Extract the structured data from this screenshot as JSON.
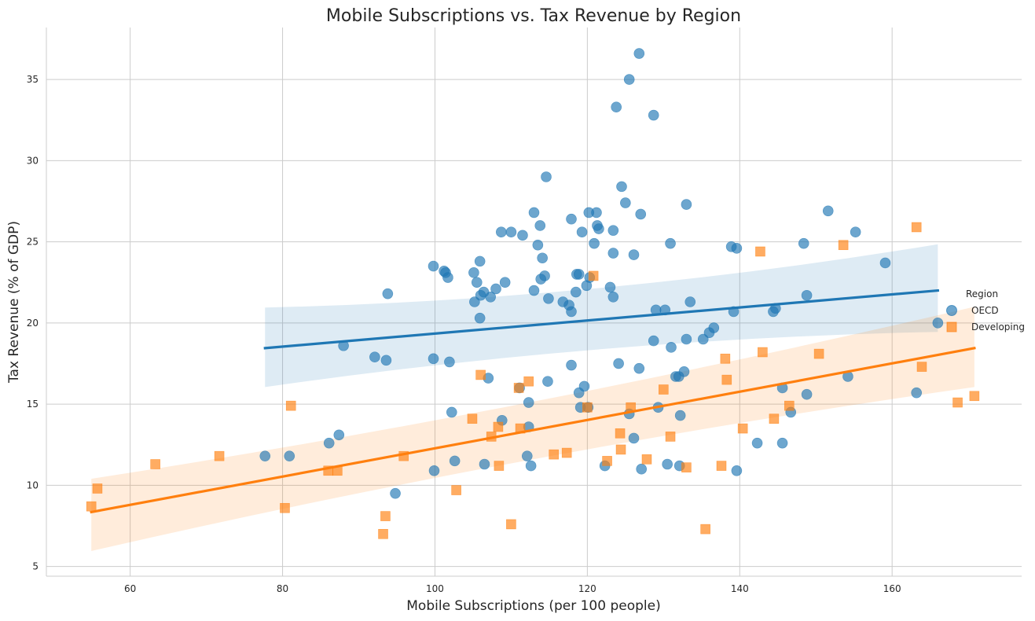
{
  "chart_data": {
    "type": "scatter",
    "title": "Mobile Subscriptions vs. Tax Revenue by Region",
    "xlabel": "Mobile Subscriptions (per 100 people)",
    "ylabel": "Tax Revenue (% of GDP)",
    "xlim": [
      49,
      177
    ],
    "ylim": [
      4.4,
      38.2
    ],
    "xticks": [
      60,
      80,
      100,
      120,
      140,
      160
    ],
    "yticks": [
      5,
      10,
      15,
      20,
      25,
      30,
      35
    ],
    "grid": true,
    "legend": {
      "title": "Region",
      "placement": "right"
    },
    "series": [
      {
        "name": "OECD",
        "color": "#1f77b4",
        "marker": "circle",
        "regression": {
          "x": [
            77.7,
            166
          ],
          "y": [
            18.45,
            22.0
          ],
          "ci_upper": [
            20.95,
            24.85
          ],
          "ci_lower": [
            16.05,
            19.45
          ]
        },
        "points": [
          [
            126.8,
            36.6
          ],
          [
            125.5,
            35.0
          ],
          [
            123.8,
            33.3
          ],
          [
            128.7,
            32.8
          ],
          [
            114.6,
            29.0
          ],
          [
            124.5,
            28.4
          ],
          [
            125.0,
            27.4
          ],
          [
            133.0,
            27.3
          ],
          [
            113.0,
            26.8
          ],
          [
            120.2,
            26.8
          ],
          [
            121.2,
            26.8
          ],
          [
            127.0,
            26.7
          ],
          [
            151.6,
            26.9
          ],
          [
            117.9,
            26.4
          ],
          [
            113.8,
            26.0
          ],
          [
            121.3,
            26.0
          ],
          [
            121.5,
            25.8
          ],
          [
            110.0,
            25.6
          ],
          [
            108.7,
            25.6
          ],
          [
            111.5,
            25.4
          ],
          [
            119.3,
            25.6
          ],
          [
            123.4,
            25.7
          ],
          [
            155.2,
            25.6
          ],
          [
            113.5,
            24.8
          ],
          [
            120.9,
            24.9
          ],
          [
            130.9,
            24.9
          ],
          [
            148.4,
            24.9
          ],
          [
            138.9,
            24.7
          ],
          [
            139.6,
            24.6
          ],
          [
            123.4,
            24.3
          ],
          [
            126.1,
            24.2
          ],
          [
            114.1,
            24.0
          ],
          [
            105.9,
            23.8
          ],
          [
            159.1,
            23.7
          ],
          [
            99.8,
            23.5
          ],
          [
            101.2,
            23.2
          ],
          [
            101.4,
            23.1
          ],
          [
            105.1,
            23.1
          ],
          [
            118.6,
            23.0
          ],
          [
            118.9,
            23.0
          ],
          [
            101.7,
            22.8
          ],
          [
            114.4,
            22.9
          ],
          [
            120.3,
            22.8
          ],
          [
            105.5,
            22.5
          ],
          [
            109.2,
            22.5
          ],
          [
            113.9,
            22.7
          ],
          [
            123.0,
            22.2
          ],
          [
            119.9,
            22.3
          ],
          [
            108.0,
            22.1
          ],
          [
            113.0,
            22.0
          ],
          [
            118.5,
            21.9
          ],
          [
            93.8,
            21.8
          ],
          [
            106.4,
            21.9
          ],
          [
            106.0,
            21.7
          ],
          [
            107.3,
            21.6
          ],
          [
            114.9,
            21.5
          ],
          [
            123.4,
            21.6
          ],
          [
            148.8,
            21.7
          ],
          [
            105.2,
            21.3
          ],
          [
            116.8,
            21.3
          ],
          [
            117.6,
            21.1
          ],
          [
            133.5,
            21.3
          ],
          [
            117.9,
            20.7
          ],
          [
            129.0,
            20.8
          ],
          [
            130.2,
            20.8
          ],
          [
            139.2,
            20.7
          ],
          [
            144.4,
            20.7
          ],
          [
            144.7,
            20.9
          ],
          [
            105.9,
            20.3
          ],
          [
            166.0,
            20.0
          ],
          [
            136.6,
            19.7
          ],
          [
            136.0,
            19.4
          ],
          [
            135.2,
            19.0
          ],
          [
            133.0,
            19.0
          ],
          [
            128.7,
            18.9
          ],
          [
            88.0,
            18.6
          ],
          [
            131.0,
            18.5
          ],
          [
            92.1,
            17.9
          ],
          [
            93.6,
            17.7
          ],
          [
            99.8,
            17.8
          ],
          [
            101.9,
            17.6
          ],
          [
            117.9,
            17.4
          ],
          [
            124.1,
            17.5
          ],
          [
            126.8,
            17.2
          ],
          [
            132.7,
            17.0
          ],
          [
            131.6,
            16.7
          ],
          [
            132.0,
            16.7
          ],
          [
            107.0,
            16.6
          ],
          [
            114.8,
            16.4
          ],
          [
            119.6,
            16.1
          ],
          [
            111.1,
            16.0
          ],
          [
            145.6,
            16.0
          ],
          [
            118.9,
            15.7
          ],
          [
            148.8,
            15.6
          ],
          [
            154.2,
            16.7
          ],
          [
            163.2,
            15.7
          ],
          [
            112.3,
            15.1
          ],
          [
            119.1,
            14.8
          ],
          [
            120.1,
            14.8
          ],
          [
            129.3,
            14.8
          ],
          [
            102.2,
            14.5
          ],
          [
            125.5,
            14.4
          ],
          [
            132.2,
            14.3
          ],
          [
            146.7,
            14.5
          ],
          [
            108.8,
            14.0
          ],
          [
            112.3,
            13.6
          ],
          [
            87.4,
            13.1
          ],
          [
            126.1,
            12.9
          ],
          [
            86.1,
            12.6
          ],
          [
            142.3,
            12.6
          ],
          [
            145.6,
            12.6
          ],
          [
            77.7,
            11.8
          ],
          [
            80.9,
            11.8
          ],
          [
            112.1,
            11.8
          ],
          [
            102.6,
            11.5
          ],
          [
            106.5,
            11.3
          ],
          [
            112.6,
            11.2
          ],
          [
            122.3,
            11.2
          ],
          [
            130.5,
            11.3
          ],
          [
            132.1,
            11.2
          ],
          [
            127.1,
            11.0
          ],
          [
            139.6,
            10.9
          ],
          [
            99.9,
            10.9
          ],
          [
            94.8,
            9.5
          ]
        ]
      },
      {
        "name": "Developing",
        "color": "#ff7f0e",
        "marker": "square",
        "regression": {
          "x": [
            54.9,
            170.8
          ],
          "y": [
            8.35,
            18.45
          ],
          "ci_upper": [
            10.4,
            21.0
          ],
          "ci_lower": [
            5.95,
            16.05
          ]
        },
        "points": [
          [
            163.2,
            25.9
          ],
          [
            153.6,
            24.8
          ],
          [
            142.7,
            24.4
          ],
          [
            120.8,
            22.9
          ],
          [
            143.0,
            18.2
          ],
          [
            150.4,
            18.1
          ],
          [
            138.1,
            17.8
          ],
          [
            163.9,
            17.3
          ],
          [
            106.0,
            16.8
          ],
          [
            138.3,
            16.5
          ],
          [
            112.3,
            16.4
          ],
          [
            111.0,
            16.0
          ],
          [
            130.0,
            15.9
          ],
          [
            170.8,
            15.5
          ],
          [
            168.6,
            15.1
          ],
          [
            81.1,
            14.9
          ],
          [
            120.0,
            14.8
          ],
          [
            125.7,
            14.8
          ],
          [
            146.5,
            14.9
          ],
          [
            104.9,
            14.1
          ],
          [
            144.5,
            14.1
          ],
          [
            108.3,
            13.6
          ],
          [
            111.2,
            13.5
          ],
          [
            140.4,
            13.5
          ],
          [
            107.4,
            13.0
          ],
          [
            124.3,
            13.2
          ],
          [
            130.9,
            13.0
          ],
          [
            71.7,
            11.8
          ],
          [
            95.9,
            11.8
          ],
          [
            115.6,
            11.9
          ],
          [
            117.3,
            12.0
          ],
          [
            124.4,
            12.2
          ],
          [
            63.3,
            11.3
          ],
          [
            108.4,
            11.2
          ],
          [
            122.6,
            11.5
          ],
          [
            127.8,
            11.6
          ],
          [
            137.6,
            11.2
          ],
          [
            133.0,
            11.1
          ],
          [
            86.0,
            10.9
          ],
          [
            87.2,
            10.9
          ],
          [
            55.7,
            9.8
          ],
          [
            102.8,
            9.7
          ],
          [
            54.9,
            8.7
          ],
          [
            80.3,
            8.6
          ],
          [
            93.5,
            8.1
          ],
          [
            110.0,
            7.6
          ],
          [
            93.2,
            7.0
          ],
          [
            135.5,
            7.3
          ]
        ]
      }
    ]
  }
}
